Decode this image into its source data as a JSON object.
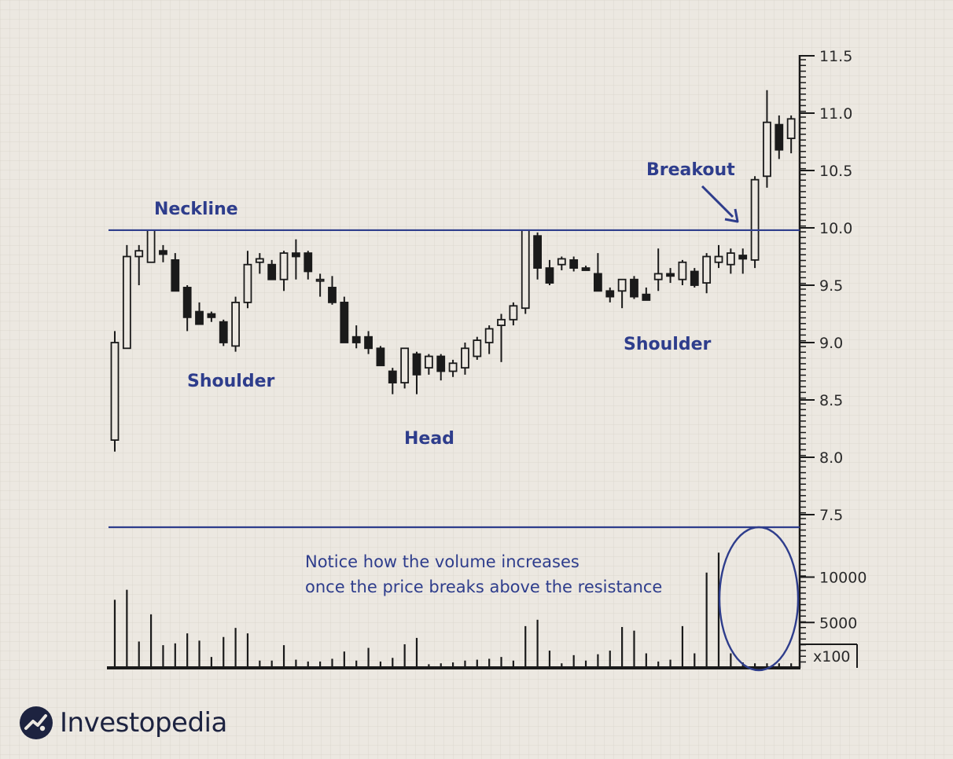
{
  "brand": {
    "name": "Investopedia",
    "icon": "investopedia-logo-icon"
  },
  "colors": {
    "annotation": "#2e3d8c",
    "candle": "#1a1a1a",
    "grid": "#dedad2",
    "background": "#ece8e1"
  },
  "chart_data": {
    "type": "candlestick",
    "title": "",
    "grid": true,
    "price_axis": {
      "ticks": [
        "11.5",
        "11.0",
        "10.5",
        "10.0",
        "9.5",
        "9.0",
        "8.5",
        "8.0",
        "7.5"
      ],
      "range": [
        7.5,
        11.5
      ]
    },
    "volume_axis": {
      "ticks": [
        "10000",
        "5000"
      ],
      "unit_label": "x100",
      "range": [
        0,
        11000
      ]
    },
    "neckline": 9.98,
    "annotations": {
      "neckline": "Neckline",
      "left_shoulder": "Shoulder",
      "head": "Head",
      "right_shoulder": "Shoulder",
      "breakout": "Breakout",
      "volume_note_line1": "Notice how the volume increases",
      "volume_note_line2": "once the price breaks above the resistance"
    },
    "candles": [
      {
        "o": 8.15,
        "h": 9.1,
        "l": 8.05,
        "c": 9.0
      },
      {
        "o": 8.95,
        "h": 9.85,
        "l": 8.95,
        "c": 9.75
      },
      {
        "o": 9.75,
        "h": 9.85,
        "l": 9.5,
        "c": 9.8
      },
      {
        "o": 9.7,
        "h": 9.98,
        "l": 9.7,
        "c": 9.98
      },
      {
        "o": 9.8,
        "h": 9.85,
        "l": 9.7,
        "c": 9.77
      },
      {
        "o": 9.72,
        "h": 9.78,
        "l": 9.45,
        "c": 9.45
      },
      {
        "o": 9.48,
        "h": 9.5,
        "l": 9.1,
        "c": 9.22
      },
      {
        "o": 9.27,
        "h": 9.35,
        "l": 9.16,
        "c": 9.16
      },
      {
        "o": 9.25,
        "h": 9.27,
        "l": 9.18,
        "c": 9.22
      },
      {
        "o": 9.18,
        "h": 9.2,
        "l": 8.97,
        "c": 9.0
      },
      {
        "o": 8.97,
        "h": 9.4,
        "l": 8.92,
        "c": 9.35
      },
      {
        "o": 9.35,
        "h": 9.8,
        "l": 9.3,
        "c": 9.68
      },
      {
        "o": 9.7,
        "h": 9.78,
        "l": 9.6,
        "c": 9.73
      },
      {
        "o": 9.68,
        "h": 9.72,
        "l": 9.55,
        "c": 9.55
      },
      {
        "o": 9.55,
        "h": 9.8,
        "l": 9.45,
        "c": 9.78
      },
      {
        "o": 9.78,
        "h": 9.9,
        "l": 9.55,
        "c": 9.75
      },
      {
        "o": 9.78,
        "h": 9.8,
        "l": 9.55,
        "c": 9.62
      },
      {
        "o": 9.55,
        "h": 9.6,
        "l": 9.4,
        "c": 9.55
      },
      {
        "o": 9.48,
        "h": 9.58,
        "l": 9.33,
        "c": 9.35
      },
      {
        "o": 9.35,
        "h": 9.4,
        "l": 9.0,
        "c": 9.0
      },
      {
        "o": 9.05,
        "h": 9.15,
        "l": 8.95,
        "c": 9.0
      },
      {
        "o": 9.05,
        "h": 9.1,
        "l": 8.9,
        "c": 8.95
      },
      {
        "o": 8.95,
        "h": 8.97,
        "l": 8.8,
        "c": 8.8
      },
      {
        "o": 8.75,
        "h": 8.78,
        "l": 8.55,
        "c": 8.65
      },
      {
        "o": 8.65,
        "h": 8.95,
        "l": 8.6,
        "c": 8.95
      },
      {
        "o": 8.9,
        "h": 8.92,
        "l": 8.55,
        "c": 8.72
      },
      {
        "o": 8.78,
        "h": 8.9,
        "l": 8.72,
        "c": 8.88
      },
      {
        "o": 8.88,
        "h": 8.9,
        "l": 8.67,
        "c": 8.75
      },
      {
        "o": 8.75,
        "h": 8.85,
        "l": 8.7,
        "c": 8.82
      },
      {
        "o": 8.78,
        "h": 9.0,
        "l": 8.72,
        "c": 8.95
      },
      {
        "o": 8.88,
        "h": 9.05,
        "l": 8.85,
        "c": 9.02
      },
      {
        "o": 9.0,
        "h": 9.15,
        "l": 8.9,
        "c": 9.12
      },
      {
        "o": 9.15,
        "h": 9.25,
        "l": 8.83,
        "c": 9.2
      },
      {
        "o": 9.2,
        "h": 9.35,
        "l": 9.15,
        "c": 9.32
      },
      {
        "o": 9.3,
        "h": 9.98,
        "l": 9.25,
        "c": 9.98
      },
      {
        "o": 9.93,
        "h": 9.96,
        "l": 9.55,
        "c": 9.65
      },
      {
        "o": 9.65,
        "h": 9.72,
        "l": 9.5,
        "c": 9.52
      },
      {
        "o": 9.68,
        "h": 9.75,
        "l": 9.63,
        "c": 9.73
      },
      {
        "o": 9.72,
        "h": 9.75,
        "l": 9.62,
        "c": 9.65
      },
      {
        "o": 9.65,
        "h": 9.67,
        "l": 9.63,
        "c": 9.63
      },
      {
        "o": 9.6,
        "h": 9.78,
        "l": 9.45,
        "c": 9.45
      },
      {
        "o": 9.45,
        "h": 9.48,
        "l": 9.35,
        "c": 9.4
      },
      {
        "o": 9.45,
        "h": 9.55,
        "l": 9.3,
        "c": 9.55
      },
      {
        "o": 9.55,
        "h": 9.58,
        "l": 9.38,
        "c": 9.4
      },
      {
        "o": 9.42,
        "h": 9.48,
        "l": 9.37,
        "c": 9.37
      },
      {
        "o": 9.55,
        "h": 9.82,
        "l": 9.45,
        "c": 9.6
      },
      {
        "o": 9.6,
        "h": 9.65,
        "l": 9.52,
        "c": 9.58
      },
      {
        "o": 9.55,
        "h": 9.72,
        "l": 9.5,
        "c": 9.7
      },
      {
        "o": 9.62,
        "h": 9.65,
        "l": 9.48,
        "c": 9.5
      },
      {
        "o": 9.52,
        "h": 9.78,
        "l": 9.43,
        "c": 9.75
      },
      {
        "o": 9.7,
        "h": 9.85,
        "l": 9.65,
        "c": 9.75
      },
      {
        "o": 9.68,
        "h": 9.82,
        "l": 9.6,
        "c": 9.78
      },
      {
        "o": 9.76,
        "h": 9.82,
        "l": 9.6,
        "c": 9.73
      },
      {
        "o": 9.72,
        "h": 10.45,
        "l": 9.65,
        "c": 10.42
      },
      {
        "o": 10.45,
        "h": 11.2,
        "l": 10.35,
        "c": 10.92
      },
      {
        "o": 10.9,
        "h": 10.98,
        "l": 10.6,
        "c": 10.68
      },
      {
        "o": 10.78,
        "h": 10.98,
        "l": 10.65,
        "c": 10.95
      }
    ],
    "volume": [
      7500,
      8600,
      2900,
      5900,
      2500,
      2700,
      3800,
      3000,
      1200,
      3400,
      4400,
      3800,
      800,
      800,
      2500,
      900,
      700,
      700,
      1000,
      1800,
      800,
      2200,
      700,
      1100,
      2600,
      3300,
      400,
      500,
      600,
      800,
      900,
      1000,
      1200,
      800,
      4600,
      5300,
      1900,
      500,
      1400,
      800,
      1500,
      1900,
      4500,
      4100,
      1600,
      700,
      900,
      4600,
      1600,
      10500,
      12700,
      1600,
      600,
      500,
      500,
      500,
      500
    ]
  }
}
